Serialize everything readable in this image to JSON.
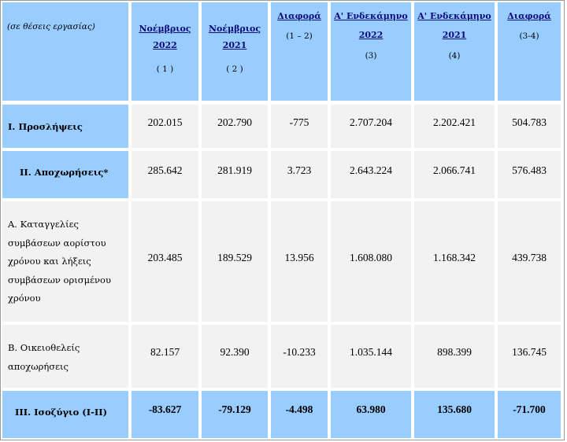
{
  "header": {
    "units_note": "(σε θέσεις εργασίας)",
    "col1": {
      "title": "Νοέμβριος",
      "year": "2022",
      "idx": "( 1 )"
    },
    "col2": {
      "title": "Νοέμβριος",
      "year": "2021",
      "idx": "( 2 )"
    },
    "col3": {
      "title": "Διαφορά",
      "sub": "(1 – 2)"
    },
    "col4": {
      "title": "Α' Ενδεκάμηνο",
      "year": "2022",
      "idx": "(3)"
    },
    "col5": {
      "title": "Α' Ενδεκάμηνο",
      "year": "2021",
      "idx": "(4)"
    },
    "col6": {
      "title": "Διαφορά",
      "sub": "(3-4)"
    }
  },
  "rows": [
    {
      "label": "Ι. Προσλήψεις",
      "values": [
        "202.015",
        "202.790",
        "-775",
        "2.707.204",
        "2.202.421",
        "504.783"
      ]
    },
    {
      "label": "ΙΙ. Αποχωρήσεις*",
      "values": [
        "285.642",
        "281.919",
        "3.723",
        "2.643.224",
        "2.066.741",
        "576.483"
      ]
    },
    {
      "label_lines": [
        "Α. Καταγγελίες",
        "συμβάσεων αορίστου",
        "χρόνου και λήξεις",
        "συμβάσεων ορισμένου",
        "χρόνου"
      ],
      "values": [
        "203.485",
        "189.529",
        "13.956",
        "1.608.080",
        "1.168.342",
        "439.738"
      ]
    },
    {
      "label_lines": [
        "Β. Οικειοθελείς",
        "αποχωρήσεις"
      ],
      "values": [
        "82.157",
        "92.390",
        "-10.233",
        "1.035.144",
        "898.399",
        "136.745"
      ]
    },
    {
      "label": "ΙΙΙ. Ισοζύγιο (Ι-ΙΙ)",
      "values": [
        "-83.627",
        "-79.129",
        "-4.498",
        "63.980",
        "135.680",
        "-71.700"
      ]
    }
  ],
  "colors": {
    "header_bg": "#99ccff",
    "cell_bg": "#f2f2f2",
    "link_text": "#0b0b7a"
  }
}
